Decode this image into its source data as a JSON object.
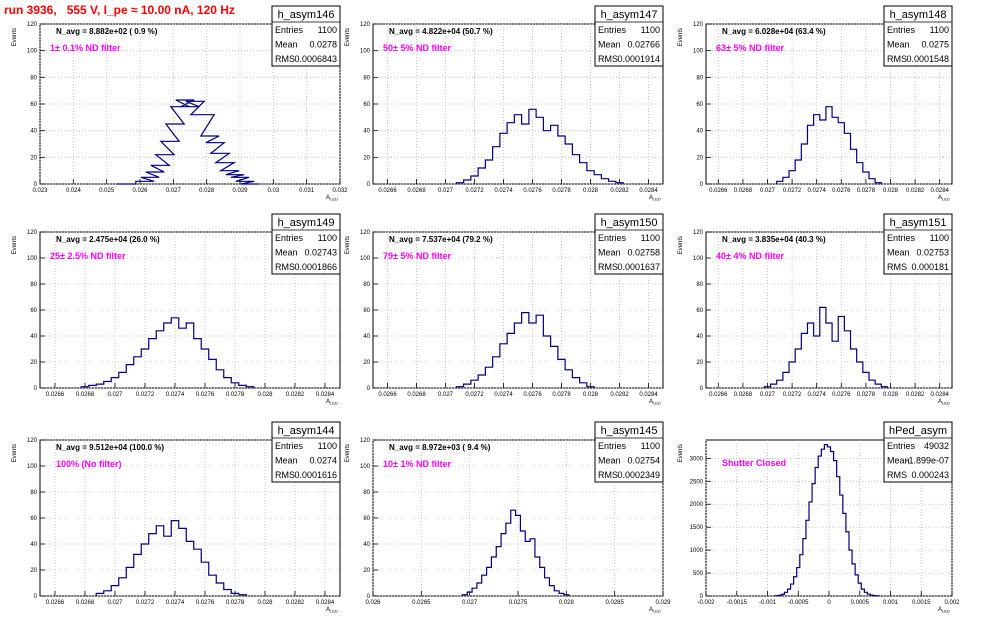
{
  "title": "run 3936,   555 V, I_pe ≈ 10.00 nA, 120 Hz",
  "colors": {
    "title": "#ff0000",
    "label": "#ff00ff",
    "hist": "#000080",
    "grid": "#bbbbbb",
    "frame": "#000000"
  },
  "stats_labels": {
    "entries": "Entries",
    "mean": "Mean",
    "rms": "RMS"
  },
  "ylabel": "Events",
  "xlabel": "A",
  "xlabel_sub": "LED",
  "chart_data": [
    {
      "type": "bar",
      "name": "h_asym146",
      "navg": "N_avg = 8.882e+02 ( 0.9 %)",
      "label": "1± 0.1% ND filter",
      "entries": "1100",
      "mean": "0.0278",
      "rms": "0.0006843",
      "xlim": [
        0.023,
        0.032
      ],
      "ylim": [
        0,
        120
      ],
      "grid": true,
      "xticks": [
        "0.023",
        "0.024",
        "0.025",
        "0.026",
        "0.027",
        "0.028",
        "0.029",
        "0.03",
        "0.031",
        "0.032"
      ],
      "yticks": [
        "0",
        "20",
        "40",
        "60",
        "80",
        "100",
        "120"
      ],
      "x": [
        0.0256,
        0.02615,
        0.0263,
        0.02645,
        0.0266,
        0.02675,
        0.0269,
        0.02705,
        0.0272,
        0.02735,
        0.0275,
        0.02765,
        0.0278,
        0.02795,
        0.0281,
        0.02825,
        0.0284,
        0.02855,
        0.0287,
        0.02885,
        0.029,
        0.02915,
        0.0293
      ],
      "values": [
        0,
        2,
        5,
        9,
        14,
        22,
        32,
        45,
        58,
        63,
        58,
        62,
        52,
        52,
        36,
        31,
        23,
        16,
        10,
        7,
        5,
        2,
        0
      ]
    },
    {
      "type": "bar",
      "name": "h_asym147",
      "navg": "N_avg = 4.822e+04 (50.7 %)",
      "label": "50± 5% ND filter",
      "entries": "1100",
      "mean": "0.02766",
      "rms": "0.0001914",
      "xlim": [
        0.0265,
        0.0285
      ],
      "ylim": [
        0,
        120
      ],
      "grid": true,
      "xticks": [
        "0.0266",
        "0.0268",
        "0.027",
        "0.0272",
        "0.0274",
        "0.0276",
        "0.0278",
        "0.028",
        "0.0282",
        "0.0284"
      ],
      "yticks": [
        "0",
        "20",
        "40",
        "60",
        "80",
        "100",
        "120"
      ],
      "x": [
        0.0271,
        0.02715,
        0.0272,
        0.02725,
        0.0273,
        0.02735,
        0.0274,
        0.02745,
        0.0275,
        0.02755,
        0.0276,
        0.02765,
        0.0277,
        0.02775,
        0.0278,
        0.02785,
        0.0279,
        0.02795,
        0.028,
        0.02805,
        0.0281,
        0.02815,
        0.0282
      ],
      "values": [
        1,
        3,
        6,
        12,
        18,
        28,
        38,
        46,
        52,
        45,
        56,
        50,
        40,
        44,
        36,
        30,
        22,
        16,
        10,
        7,
        4,
        2,
        1
      ]
    },
    {
      "type": "bar",
      "name": "h_asym148",
      "navg": "N_avg = 6.028e+04 (63.4 %)",
      "label": "63± 5% ND filter",
      "entries": "1100",
      "mean": "0.0275",
      "rms": "0.0001548",
      "xlim": [
        0.0265,
        0.0285
      ],
      "ylim": [
        0,
        120
      ],
      "grid": true,
      "xticks": [
        "0.0266",
        "0.0268",
        "0.027",
        "0.0272",
        "0.0274",
        "0.0276",
        "0.0278",
        "0.028",
        "0.0282",
        "0.0284"
      ],
      "yticks": [
        "0",
        "20",
        "40",
        "60",
        "80",
        "100",
        "120"
      ],
      "x": [
        0.0271,
        0.02715,
        0.0272,
        0.02725,
        0.0273,
        0.02735,
        0.0274,
        0.02745,
        0.0275,
        0.02755,
        0.0276,
        0.02765,
        0.0277,
        0.02775,
        0.0278,
        0.02785,
        0.0279
      ],
      "values": [
        2,
        5,
        10,
        18,
        30,
        44,
        52,
        48,
        58,
        50,
        46,
        38,
        26,
        16,
        9,
        4,
        1
      ]
    },
    {
      "type": "bar",
      "name": "h_asym149",
      "navg": "N_avg = 2.475e+04 (26.0 %)",
      "label": "25± 2.5% ND filter",
      "entries": "1100",
      "mean": "0.02743",
      "rms": "0.0001866",
      "xlim": [
        0.0265,
        0.0285
      ],
      "ylim": [
        0,
        120
      ],
      "grid": true,
      "xticks": [
        "0.0266",
        "0.0268",
        "0.027",
        "0.0272",
        "0.0274",
        "0.0276",
        "0.0278",
        "0.028",
        "0.0282",
        "0.0284"
      ],
      "yticks": [
        "0",
        "20",
        "40",
        "60",
        "80",
        "100",
        "120"
      ],
      "x": [
        0.0268,
        0.02685,
        0.0269,
        0.02695,
        0.027,
        0.02705,
        0.0271,
        0.02715,
        0.0272,
        0.02725,
        0.0273,
        0.02735,
        0.0274,
        0.02745,
        0.0275,
        0.02755,
        0.0276,
        0.02765,
        0.0277,
        0.02775,
        0.0278,
        0.02785,
        0.0279
      ],
      "values": [
        1,
        2,
        3,
        5,
        8,
        12,
        18,
        24,
        30,
        38,
        44,
        50,
        54,
        46,
        50,
        38,
        30,
        22,
        14,
        8,
        4,
        2,
        1
      ]
    },
    {
      "type": "bar",
      "name": "h_asym150",
      "navg": "N_avg = 7.537e+04 (79.2 %)",
      "label": "79± 5% ND filter",
      "entries": "1100",
      "mean": "0.02758",
      "rms": "0.0001637",
      "xlim": [
        0.0265,
        0.0285
      ],
      "ylim": [
        0,
        120
      ],
      "grid": true,
      "xticks": [
        "0.0266",
        "0.0268",
        "0.027",
        "0.0272",
        "0.0274",
        "0.0276",
        "0.0278",
        "0.028",
        "0.0282",
        "0.0284"
      ],
      "yticks": [
        "0",
        "20",
        "40",
        "60",
        "80",
        "100",
        "120"
      ],
      "x": [
        0.0271,
        0.02715,
        0.0272,
        0.02725,
        0.0273,
        0.02735,
        0.0274,
        0.02745,
        0.0275,
        0.02755,
        0.0276,
        0.02765,
        0.0277,
        0.02775,
        0.0278,
        0.02785,
        0.0279,
        0.02795,
        0.028
      ],
      "values": [
        1,
        3,
        6,
        10,
        16,
        24,
        34,
        42,
        50,
        58,
        50,
        56,
        40,
        32,
        22,
        14,
        8,
        4,
        1
      ]
    },
    {
      "type": "bar",
      "name": "h_asym151",
      "navg": "N_avg = 3.835e+04 (40.3 %)",
      "label": "40± 4% ND filter",
      "entries": "1100",
      "mean": "0.02753",
      "rms": "0.000181",
      "xlim": [
        0.0265,
        0.0285
      ],
      "ylim": [
        0,
        120
      ],
      "grid": true,
      "xticks": [
        "0.0266",
        "0.0268",
        "0.027",
        "0.0272",
        "0.0274",
        "0.0276",
        "0.0278",
        "0.028",
        "0.0282",
        "0.0284"
      ],
      "yticks": [
        "0",
        "20",
        "40",
        "60",
        "80",
        "100",
        "120"
      ],
      "x": [
        0.027,
        0.02705,
        0.0271,
        0.02715,
        0.0272,
        0.02725,
        0.0273,
        0.02735,
        0.0274,
        0.02745,
        0.0275,
        0.02755,
        0.0276,
        0.02765,
        0.0277,
        0.02775,
        0.0278,
        0.02785,
        0.0279,
        0.02795
      ],
      "values": [
        1,
        3,
        6,
        12,
        20,
        30,
        42,
        50,
        40,
        62,
        50,
        36,
        55,
        44,
        30,
        20,
        12,
        6,
        3,
        1
      ]
    },
    {
      "type": "bar",
      "name": "h_asym144",
      "navg": "N_avg = 9.512e+04 (100.0 %)",
      "label": "100% (No filter)",
      "entries": "1100",
      "mean": "0.0274",
      "rms": "0.0001616",
      "xlim": [
        0.0265,
        0.0285
      ],
      "ylim": [
        0,
        120
      ],
      "grid": true,
      "xticks": [
        "0.0266",
        "0.0268",
        "0.027",
        "0.0272",
        "0.0274",
        "0.0276",
        "0.0278",
        "0.028",
        "0.0282",
        "0.0284"
      ],
      "yticks": [
        "0",
        "20",
        "40",
        "60",
        "80",
        "100",
        "120"
      ],
      "x": [
        0.0269,
        0.02695,
        0.027,
        0.02705,
        0.0271,
        0.02715,
        0.0272,
        0.02725,
        0.0273,
        0.02735,
        0.0274,
        0.02745,
        0.0275,
        0.02755,
        0.0276,
        0.02765,
        0.0277,
        0.02775,
        0.0278,
        0.02785
      ],
      "values": [
        2,
        4,
        8,
        14,
        22,
        32,
        40,
        48,
        54,
        46,
        58,
        52,
        42,
        36,
        26,
        16,
        10,
        5,
        2,
        1
      ]
    },
    {
      "type": "bar",
      "name": "h_asym145",
      "navg": "N_avg = 8.972e+03 ( 9.4 %)",
      "label": "10± 1% ND filter",
      "entries": "1100",
      "mean": "0.02754",
      "rms": "0.0002349",
      "xlim": [
        0.026,
        0.029
      ],
      "ylim": [
        0,
        120
      ],
      "grid": true,
      "xticks": [
        "0.026",
        "0.0265",
        "0.027",
        "0.0275",
        "0.028",
        "0.0285",
        "0.029"
      ],
      "yticks": [
        "0",
        "20",
        "40",
        "60",
        "80",
        "100",
        "120"
      ],
      "x": [
        0.02695,
        0.027,
        0.02705,
        0.0271,
        0.02715,
        0.0272,
        0.02725,
        0.0273,
        0.02735,
        0.0274,
        0.02745,
        0.0275,
        0.02755,
        0.0276,
        0.02765,
        0.0277,
        0.02775,
        0.0278,
        0.02785,
        0.0279,
        0.02795,
        0.028
      ],
      "values": [
        1,
        3,
        6,
        10,
        16,
        22,
        30,
        38,
        48,
        56,
        66,
        62,
        50,
        42,
        44,
        30,
        22,
        14,
        8,
        4,
        2,
        1
      ]
    },
    {
      "type": "bar",
      "name": "hPed_asym",
      "navg": "",
      "label": "Shutter Closed",
      "entries": "49032",
      "mean": "-1.899e-07",
      "rms": "0.000243",
      "xlim": [
        -0.002,
        0.002
      ],
      "ylim": [
        0,
        3400
      ],
      "grid": true,
      "xticks": [
        "-0.002",
        "-0.0015",
        "-0.001",
        "-0.0005",
        "0",
        "0.0005",
        "0.001",
        "0.0015",
        "0.002"
      ],
      "yticks": [
        "0",
        "500",
        "1000",
        "1500",
        "2000",
        "2500",
        "3000"
      ],
      "x": [
        -0.00085,
        -0.0008,
        -0.00075,
        -0.0007,
        -0.00065,
        -0.0006,
        -0.00055,
        -0.0005,
        -0.00045,
        -0.0004,
        -0.00035,
        -0.0003,
        -0.00025,
        -0.0002,
        -0.00015,
        -0.0001,
        -5e-05,
        0,
        5e-05,
        0.0001,
        0.00015,
        0.0002,
        0.00025,
        0.0003,
        0.00035,
        0.0004,
        0.00045,
        0.0005,
        0.00055,
        0.0006,
        0.00065,
        0.0007,
        0.00075,
        0.0008
      ],
      "values": [
        5,
        15,
        35,
        80,
        150,
        260,
        420,
        620,
        900,
        1250,
        1650,
        2050,
        2450,
        2800,
        3050,
        3200,
        3300,
        3250,
        3150,
        2950,
        2600,
        2200,
        1800,
        1400,
        1000,
        700,
        460,
        280,
        150,
        80,
        40,
        18,
        8,
        3
      ]
    }
  ]
}
